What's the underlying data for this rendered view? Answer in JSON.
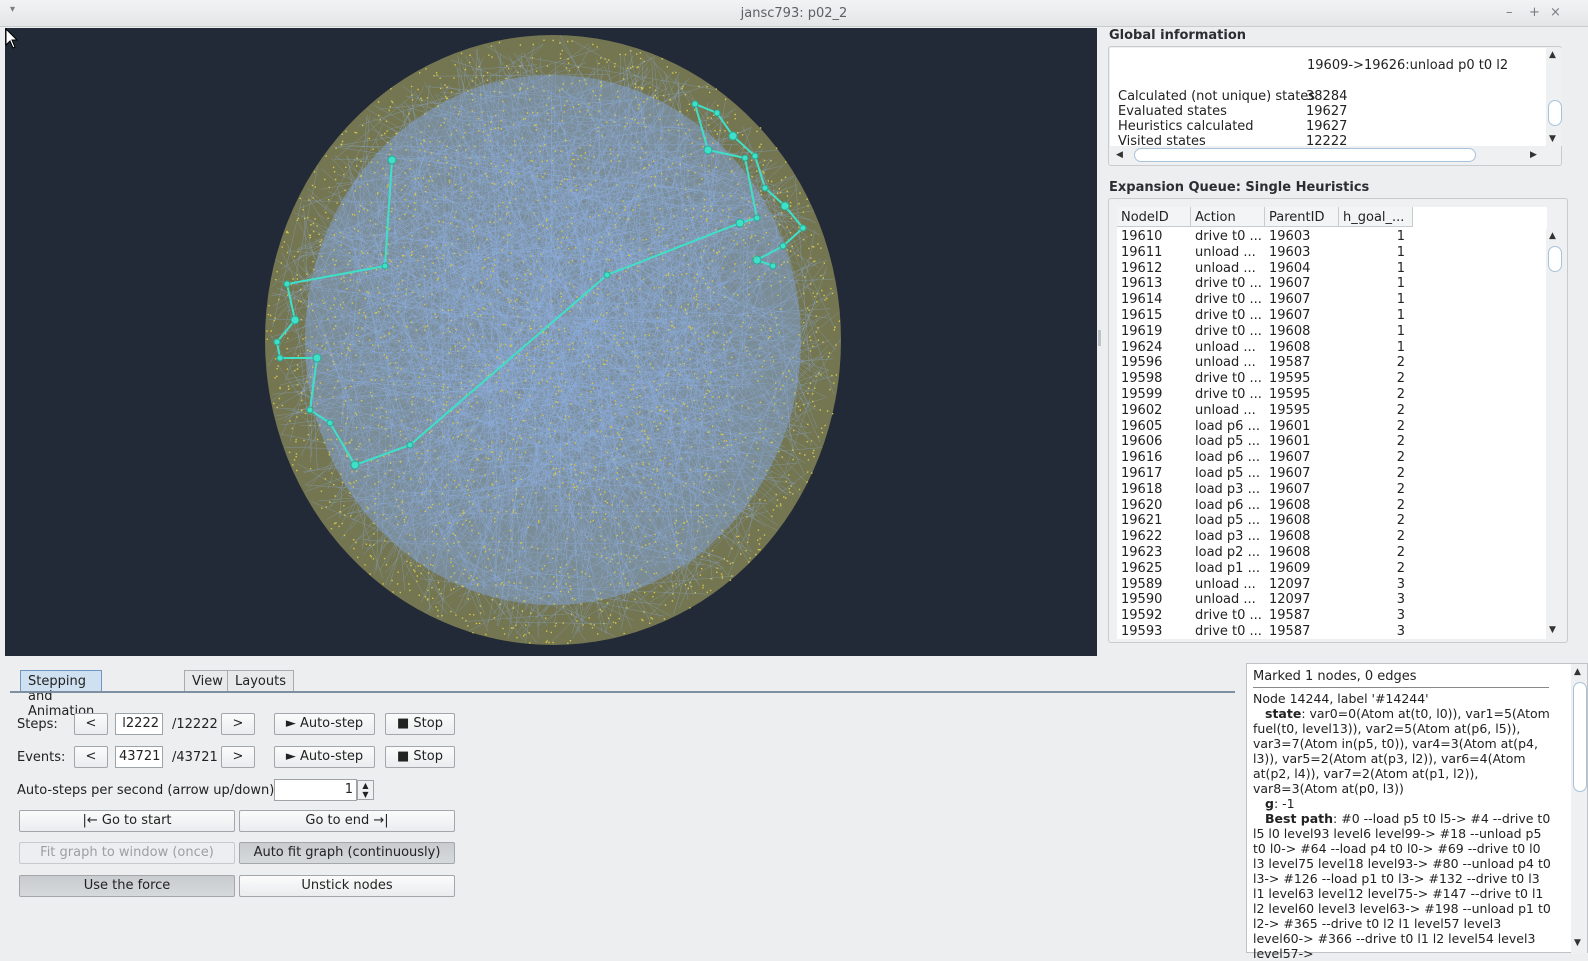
{
  "window": {
    "title": "jansc793: p02_2",
    "controls": [
      "▾",
      "–",
      "+",
      "×"
    ]
  },
  "global_info": {
    "header": "Global information",
    "last_action": "19609->19626:unload p0 t0 l2",
    "rows": [
      {
        "label": "Calculated (not unique) states",
        "value": "38284"
      },
      {
        "label": "Evaluated states",
        "value": "19627"
      },
      {
        "label": "Heuristics calculated",
        "value": "19627"
      },
      {
        "label": "Visited states",
        "value": "12222"
      }
    ]
  },
  "queue": {
    "header": "Expansion Queue: Single Heuristics",
    "columns": [
      "NodeID",
      "Action",
      "ParentID",
      "h_goal_..."
    ],
    "rows": [
      [
        "19610",
        "drive t0 ...",
        "19603",
        "1"
      ],
      [
        "19611",
        "unload ...",
        "19603",
        "1"
      ],
      [
        "19612",
        "unload ...",
        "19604",
        "1"
      ],
      [
        "19613",
        "drive t0 ...",
        "19607",
        "1"
      ],
      [
        "19614",
        "drive t0 ...",
        "19607",
        "1"
      ],
      [
        "19615",
        "drive t0 ...",
        "19607",
        "1"
      ],
      [
        "19619",
        "drive t0 ...",
        "19608",
        "1"
      ],
      [
        "19624",
        "unload ...",
        "19608",
        "1"
      ],
      [
        "19596",
        "unload ...",
        "19587",
        "2"
      ],
      [
        "19598",
        "drive t0 ...",
        "19595",
        "2"
      ],
      [
        "19599",
        "drive t0 ...",
        "19595",
        "2"
      ],
      [
        "19602",
        "unload ...",
        "19595",
        "2"
      ],
      [
        "19605",
        "load p6 ...",
        "19601",
        "2"
      ],
      [
        "19606",
        "load p5 ...",
        "19601",
        "2"
      ],
      [
        "19616",
        "load p6 ...",
        "19607",
        "2"
      ],
      [
        "19617",
        "load p5 ...",
        "19607",
        "2"
      ],
      [
        "19618",
        "load p3 ...",
        "19607",
        "2"
      ],
      [
        "19620",
        "load p6 ...",
        "19608",
        "2"
      ],
      [
        "19621",
        "load p5 ...",
        "19608",
        "2"
      ],
      [
        "19622",
        "load p3 ...",
        "19608",
        "2"
      ],
      [
        "19623",
        "load p2 ...",
        "19608",
        "2"
      ],
      [
        "19625",
        "load p1 ...",
        "19609",
        "2"
      ],
      [
        "19589",
        "unload ...",
        "12097",
        "3"
      ],
      [
        "19590",
        "unload ...",
        "12097",
        "3"
      ],
      [
        "19592",
        "drive t0 ...",
        "19587",
        "3"
      ],
      [
        "19593",
        "drive t0 ...",
        "19587",
        "3"
      ]
    ]
  },
  "tabs": [
    {
      "label": "Stepping and Animation",
      "active": true
    },
    {
      "label": "View",
      "active": false
    },
    {
      "label": "Layouts",
      "active": false
    }
  ],
  "controls": {
    "steps_label": "Steps:",
    "steps_value": "l2222",
    "steps_total": "/12222",
    "events_label": "Events:",
    "events_value": "43721",
    "events_total": "/43721",
    "prev": "<",
    "next": ">",
    "autostep": "► Auto-step",
    "stop": "■ Stop",
    "aps_label": "Auto-steps per second (arrow up/down):",
    "aps_value": "1",
    "go_start": "|←  Go to start",
    "go_end": "Go to end  →|",
    "fit_once": "Fit graph to window (once)",
    "fit_cont": "Auto fit graph (continuously)",
    "use_force": "Use the force",
    "unstick": "Unstick nodes"
  },
  "info": {
    "marked": "Marked 1 nodes, 0 edges",
    "node_line": "Node 14244, label '#14244'",
    "state_label": "state",
    "state_text": ": var0=0(Atom at(t0, l0)), var1=5(Atom fuel(t0, level13)), var2=5(Atom at(p6, l5)), var3=7(Atom in(p5, t0)), var4=3(Atom at(p4, l3)), var5=2(Atom at(p3, l2)), var6=4(Atom at(p2, l4)), var7=2(Atom at(p1, l2)), var8=3(Atom at(p0, l3))",
    "g_label": "g",
    "g_text": ": -1",
    "path_label": "Best path",
    "path_text": ": #0 --load p5 t0 l5-> #4 --drive t0 l5 l0 level93 level6 level99-> #18 --unload p5 t0 l0-> #64 --load p4 t0 l0-> #69 --drive t0 l0 l3 level75 level18 level93-> #80 --unload p4 t0 l3-> #126 --load p1 t0 l3-> #132 --drive t0 l3 l1 level63 level12 level75-> #147 --drive t0 l1 l2 level60 level3 level63-> #198 --unload p1 t0 l2-> #365 --drive t0 l2 l1 level57 level3 level60-> #366 --drive t0 l1 l2 level54 level3 level57->"
  },
  "colors": {
    "canvas_bg": "#212a36",
    "edge_blue": "#8fb1e6",
    "node_yellow": "#d6c84a",
    "path_cyan": "#3fe0c8"
  }
}
